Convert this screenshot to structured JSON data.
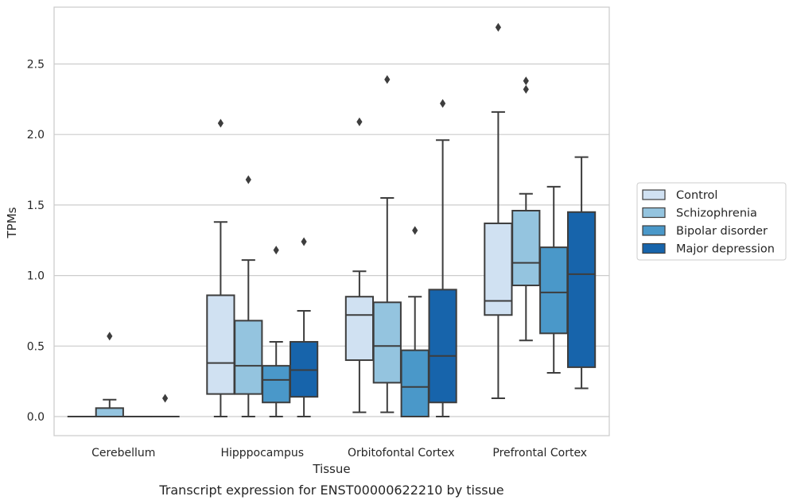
{
  "chart_data": {
    "type": "boxplot",
    "xlabel": "Tissue",
    "ylabel": "TPMs",
    "caption": "Transcript expression for ENST00000622210 by tissue",
    "ylim": [
      -0.13,
      2.9
    ],
    "yticks": [
      "0.0",
      "0.5",
      "1.0",
      "1.5",
      "2.0",
      "2.5"
    ],
    "grid": "horizontal",
    "legend_position": "right",
    "categories": [
      "Cerebellum",
      "Hipppocampus",
      "Orbitofontal Cortex",
      "Prefrontal Cortex"
    ],
    "series": [
      {
        "name": "Control",
        "color": "#d0e1f2",
        "boxes": [
          {
            "whislo": 0.0,
            "q1": 0.0,
            "med": 0.0,
            "q3": 0.0,
            "whishi": 0.0,
            "fliers": []
          },
          {
            "whislo": 0.0,
            "q1": 0.16,
            "med": 0.38,
            "q3": 0.86,
            "whishi": 1.38,
            "fliers": [
              2.08
            ]
          },
          {
            "whislo": 0.03,
            "q1": 0.4,
            "med": 0.72,
            "q3": 0.85,
            "whishi": 1.03,
            "fliers": [
              2.09
            ]
          },
          {
            "whislo": 0.13,
            "q1": 0.72,
            "med": 0.82,
            "q3": 1.37,
            "whishi": 2.16,
            "fliers": [
              2.76
            ]
          }
        ]
      },
      {
        "name": "Schizophrenia",
        "color": "#94c4df",
        "boxes": [
          {
            "whislo": 0.0,
            "q1": 0.0,
            "med": 0.0,
            "q3": 0.06,
            "whishi": 0.12,
            "fliers": [
              0.57
            ]
          },
          {
            "whislo": 0.0,
            "q1": 0.16,
            "med": 0.36,
            "q3": 0.68,
            "whishi": 1.11,
            "fliers": [
              1.68
            ]
          },
          {
            "whislo": 0.03,
            "q1": 0.24,
            "med": 0.5,
            "q3": 0.81,
            "whishi": 1.55,
            "fliers": [
              2.39
            ]
          },
          {
            "whislo": 0.54,
            "q1": 0.93,
            "med": 1.09,
            "q3": 1.46,
            "whishi": 1.58,
            "fliers": [
              2.32,
              2.38
            ]
          }
        ]
      },
      {
        "name": "Bipolar disorder",
        "color": "#4a98c9",
        "boxes": [
          {
            "whislo": 0.0,
            "q1": 0.0,
            "med": 0.0,
            "q3": 0.0,
            "whishi": 0.0,
            "fliers": []
          },
          {
            "whislo": 0.0,
            "q1": 0.1,
            "med": 0.26,
            "q3": 0.36,
            "whishi": 0.53,
            "fliers": [
              1.18
            ]
          },
          {
            "whislo": 0.0,
            "q1": 0.0,
            "med": 0.21,
            "q3": 0.47,
            "whishi": 0.85,
            "fliers": [
              1.32
            ]
          },
          {
            "whislo": 0.31,
            "q1": 0.59,
            "med": 0.88,
            "q3": 1.2,
            "whishi": 1.63,
            "fliers": []
          }
        ]
      },
      {
        "name": "Major depression",
        "color": "#1764ab",
        "boxes": [
          {
            "whislo": 0.0,
            "q1": 0.0,
            "med": 0.0,
            "q3": 0.0,
            "whishi": 0.0,
            "fliers": [
              0.13
            ]
          },
          {
            "whislo": 0.0,
            "q1": 0.14,
            "med": 0.33,
            "q3": 0.53,
            "whishi": 0.75,
            "fliers": [
              1.24
            ]
          },
          {
            "whislo": 0.0,
            "q1": 0.1,
            "med": 0.43,
            "q3": 0.9,
            "whishi": 1.96,
            "fliers": [
              2.22
            ]
          },
          {
            "whislo": 0.2,
            "q1": 0.35,
            "med": 1.01,
            "q3": 1.45,
            "whishi": 1.84,
            "fliers": []
          }
        ]
      }
    ]
  }
}
